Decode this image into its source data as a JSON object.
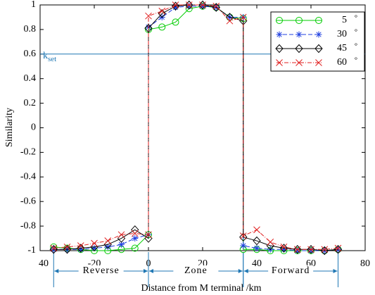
{
  "chart_data": {
    "type": "line",
    "x_label": "Distance from M terminal /km",
    "y_label": "Similarity",
    "x": [
      -35,
      -30,
      -25,
      -20,
      -15,
      -10,
      -5,
      0,
      0,
      5,
      10,
      15,
      20,
      25,
      30,
      35,
      35,
      40,
      45,
      50,
      55,
      60,
      65,
      70
    ],
    "series": [
      {
        "name": "5",
        "color": "#00cc00",
        "marker": "circle",
        "dash": "",
        "values": [
          -0.97,
          -0.98,
          -0.99,
          -1,
          -1,
          -0.99,
          -0.98,
          -0.87,
          0.8,
          0.82,
          0.86,
          0.97,
          0.99,
          0.98,
          0.9,
          0.89,
          -0.99,
          -0.99,
          -1,
          -1,
          -1,
          -1,
          -1,
          -0.99
        ]
      },
      {
        "name": "30",
        "color": "#1f3fe0",
        "marker": "star",
        "dash": "6 3",
        "values": [
          -0.99,
          -0.99,
          -0.99,
          -0.98,
          -0.97,
          -0.95,
          -0.9,
          -0.87,
          0.82,
          0.9,
          0.98,
          0.99,
          0.99,
          0.98,
          0.9,
          0.9,
          -0.96,
          -0.98,
          -0.99,
          -0.99,
          -1,
          -1,
          -1,
          -0.99
        ]
      },
      {
        "name": "45",
        "color": "#000000",
        "marker": "diamond",
        "dash": "",
        "values": [
          -0.99,
          -0.99,
          -0.98,
          -0.97,
          -0.95,
          -0.9,
          -0.83,
          -0.9,
          0.81,
          0.93,
          0.99,
          1.0,
          1.0,
          0.98,
          0.9,
          0.87,
          -0.89,
          -0.92,
          -0.96,
          -0.98,
          -0.99,
          -0.99,
          -1,
          -0.99
        ]
      },
      {
        "name": "60",
        "color": "#e02020",
        "marker": "cross",
        "dash": "6 2 1 2",
        "values": [
          -0.98,
          -0.97,
          -0.96,
          -0.94,
          -0.92,
          -0.87,
          -0.86,
          -0.87,
          0.91,
          0.95,
          1.0,
          1.0,
          1.0,
          0.99,
          0.87,
          0.9,
          -0.88,
          -0.83,
          -0.93,
          -0.97,
          -0.99,
          -0.99,
          -0.99,
          -0.98
        ]
      }
    ],
    "legend_unit": "°",
    "legend_position": "upper right",
    "xlim": [
      -40,
      80
    ],
    "xticks": [
      {
        "value": -40,
        "label": "40"
      },
      -20,
      0,
      20,
      40,
      60,
      80
    ],
    "ylim": [
      -1,
      1
    ],
    "yticks": [
      -1,
      -0.8,
      -0.6,
      -0.4,
      -0.2,
      0,
      0.2,
      0.4,
      0.6,
      0.8,
      1
    ],
    "threshold": {
      "value": 0.6,
      "label": "k",
      "label_sub": "set",
      "color": "#1f77b4"
    },
    "regions": [
      {
        "label": "Reverse",
        "from": -35,
        "to": 0
      },
      {
        "label": "Zone",
        "from": 0,
        "to": 35
      },
      {
        "label": "Forward",
        "from": 35,
        "to": 70
      }
    ],
    "region_color": "#1f77b4"
  }
}
